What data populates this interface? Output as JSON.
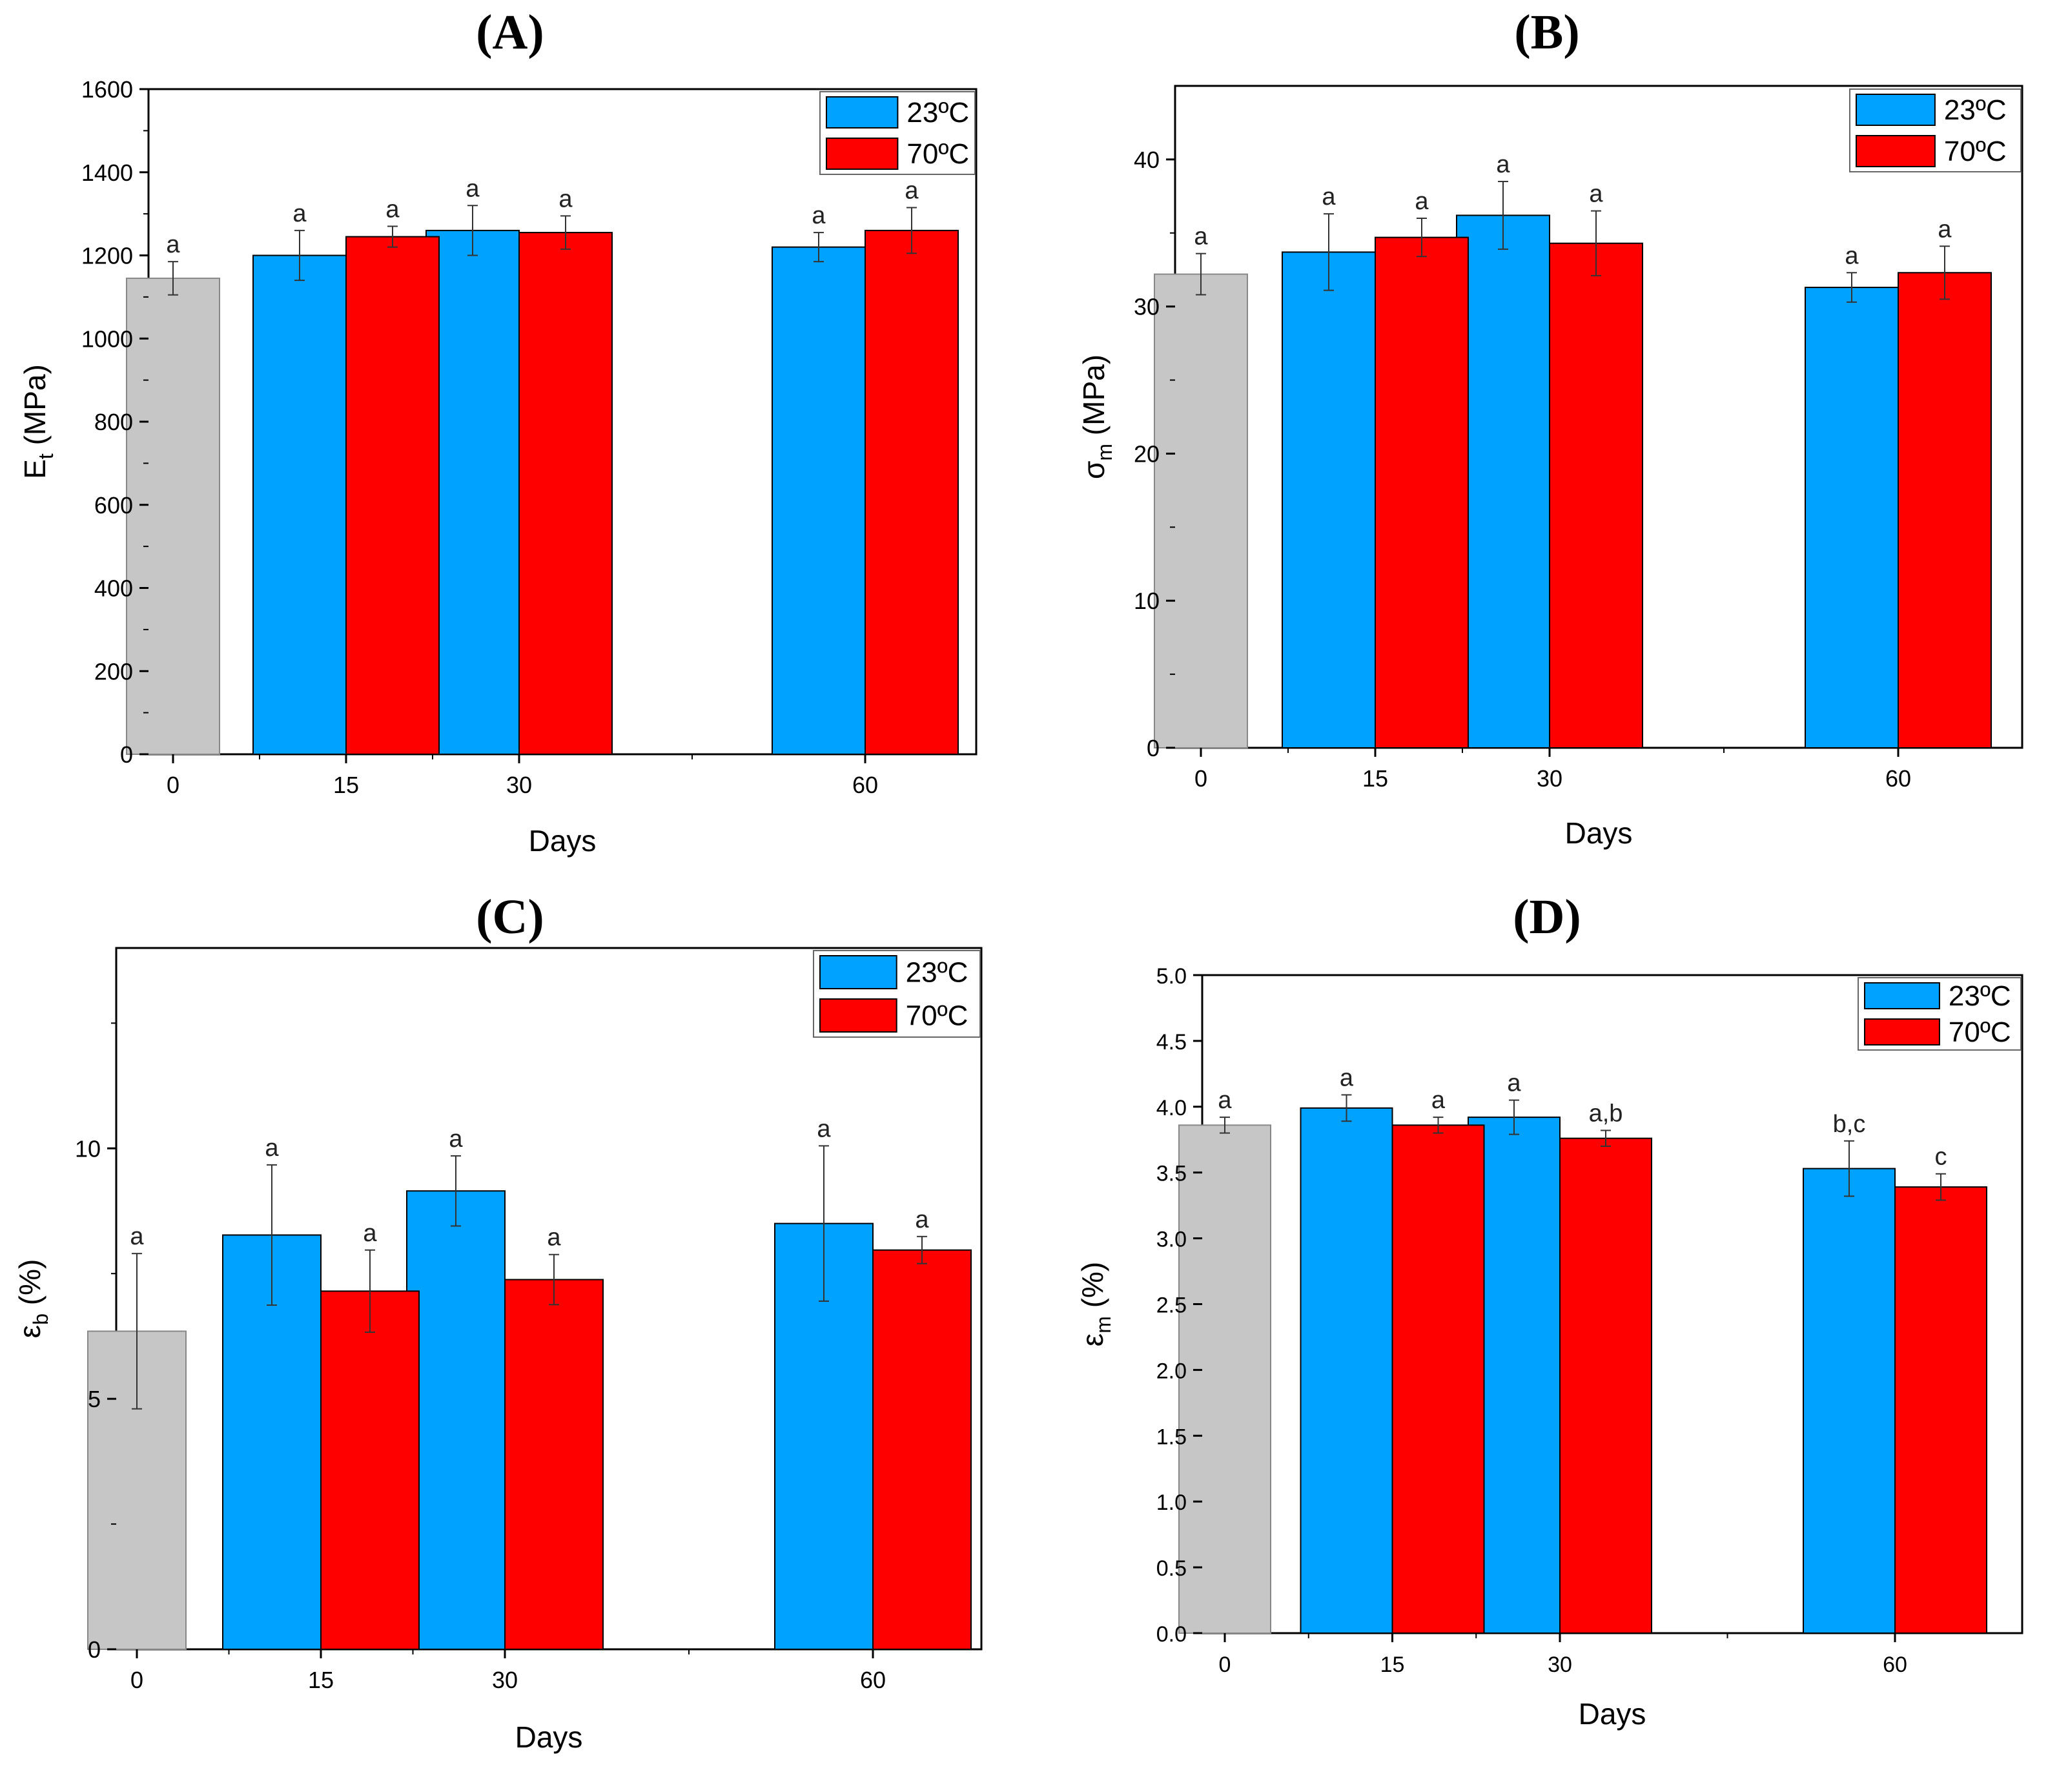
{
  "chart_data": [
    {
      "panel": "(A)",
      "type": "bar",
      "categories": [
        "0",
        "15",
        "30",
        "60"
      ],
      "series": [
        {
          "name": "",
          "values": [
            1145,
            null,
            null,
            null
          ],
          "errors": [
            40,
            null,
            null,
            null
          ],
          "letters": [
            "a",
            null,
            null,
            null
          ]
        },
        {
          "name": "23ºC",
          "values": [
            null,
            1200,
            1260,
            1220
          ],
          "errors": [
            null,
            60,
            60,
            35
          ],
          "letters": [
            null,
            "a",
            "a",
            "a"
          ]
        },
        {
          "name": "70ºC",
          "values": [
            null,
            1245,
            1255,
            1260
          ],
          "errors": [
            null,
            25,
            40,
            55
          ],
          "letters": [
            null,
            "a",
            "a",
            "a"
          ]
        }
      ],
      "xlabel": "Days",
      "ylabel": "E",
      "ylabel_sub": "t",
      "ylabel_unit": " (MPa)",
      "ylim": [
        0,
        1600
      ],
      "yticks": [
        0,
        200,
        400,
        600,
        800,
        1000,
        1200,
        1400,
        1600
      ],
      "minor_ticks": true,
      "legend": "top-right"
    },
    {
      "panel": "(B)",
      "type": "bar",
      "categories": [
        "0",
        "15",
        "30",
        "60"
      ],
      "series": [
        {
          "name": "",
          "values": [
            32.2,
            null,
            null,
            null
          ],
          "errors": [
            1.4,
            null,
            null,
            null
          ],
          "letters": [
            "a",
            null,
            null,
            null
          ]
        },
        {
          "name": "23ºC",
          "values": [
            null,
            33.7,
            36.2,
            31.3
          ],
          "errors": [
            null,
            2.6,
            2.3,
            1.0
          ],
          "letters": [
            null,
            "a",
            "a",
            "a"
          ]
        },
        {
          "name": "70ºC",
          "values": [
            null,
            34.7,
            34.3,
            32.3
          ],
          "errors": [
            null,
            1.3,
            2.2,
            1.8
          ],
          "letters": [
            null,
            "a",
            "a",
            "a"
          ]
        }
      ],
      "xlabel": "Days",
      "ylabel": "σ",
      "ylabel_sub": "m",
      "ylabel_unit": " (MPa)",
      "ylim": [
        0,
        45
      ],
      "yticks": [
        0,
        10,
        20,
        30,
        40
      ],
      "minor_ticks": true,
      "legend": "top-right"
    },
    {
      "panel": "(C)",
      "type": "bar",
      "categories": [
        "0",
        "15",
        "30",
        "60"
      ],
      "series": [
        {
          "name": "",
          "values": [
            6.35,
            null,
            null,
            null
          ],
          "errors": [
            1.55,
            null,
            null,
            null
          ],
          "letters": [
            "a",
            null,
            null,
            null
          ]
        },
        {
          "name": "23ºC",
          "values": [
            null,
            8.27,
            9.15,
            8.5
          ],
          "errors": [
            null,
            1.4,
            0.7,
            1.55
          ],
          "letters": [
            null,
            "a",
            "a",
            "a"
          ]
        },
        {
          "name": "70ºC",
          "values": [
            null,
            7.15,
            7.38,
            7.97
          ],
          "errors": [
            null,
            0.82,
            0.5,
            0.27
          ],
          "letters": [
            null,
            "a",
            "a",
            "a"
          ]
        }
      ],
      "xlabel": "Days",
      "ylabel": "ε",
      "ylabel_sub": "b",
      "ylabel_unit": " (%)",
      "ylim": [
        0,
        14
      ],
      "yticks": [
        0,
        5,
        10
      ],
      "minor_ticks": true,
      "legend": "top-right"
    },
    {
      "panel": "(D)",
      "type": "bar",
      "categories": [
        "0",
        "15",
        "30",
        "60"
      ],
      "series": [
        {
          "name": "",
          "values": [
            3.86,
            null,
            null,
            null
          ],
          "errors": [
            0.06,
            null,
            null,
            null
          ],
          "letters": [
            "a",
            null,
            null,
            null
          ]
        },
        {
          "name": "23ºC",
          "values": [
            null,
            3.99,
            3.92,
            3.53
          ],
          "errors": [
            null,
            0.1,
            0.13,
            0.21
          ],
          "letters": [
            null,
            "a",
            "a",
            "b,c"
          ]
        },
        {
          "name": "70ºC",
          "values": [
            null,
            3.86,
            3.76,
            3.39
          ],
          "errors": [
            null,
            0.06,
            0.06,
            0.1
          ],
          "letters": [
            null,
            "a",
            "a,b",
            "c"
          ]
        }
      ],
      "xlabel": "Days",
      "ylabel": "ε",
      "ylabel_sub": "m",
      "ylabel_unit": " (%)",
      "ylim": [
        0,
        5
      ],
      "yticks": [
        0.0,
        0.5,
        1.0,
        1.5,
        2.0,
        2.5,
        3.0,
        3.5,
        4.0,
        4.5,
        5.0
      ],
      "tick_decimals": 1,
      "minor_ticks": false,
      "legend": "top-right"
    }
  ],
  "colors": {
    "control": "#c6c6c6",
    "c23": "#00a2ff",
    "c70": "#ff0000",
    "axis": "#000000"
  }
}
